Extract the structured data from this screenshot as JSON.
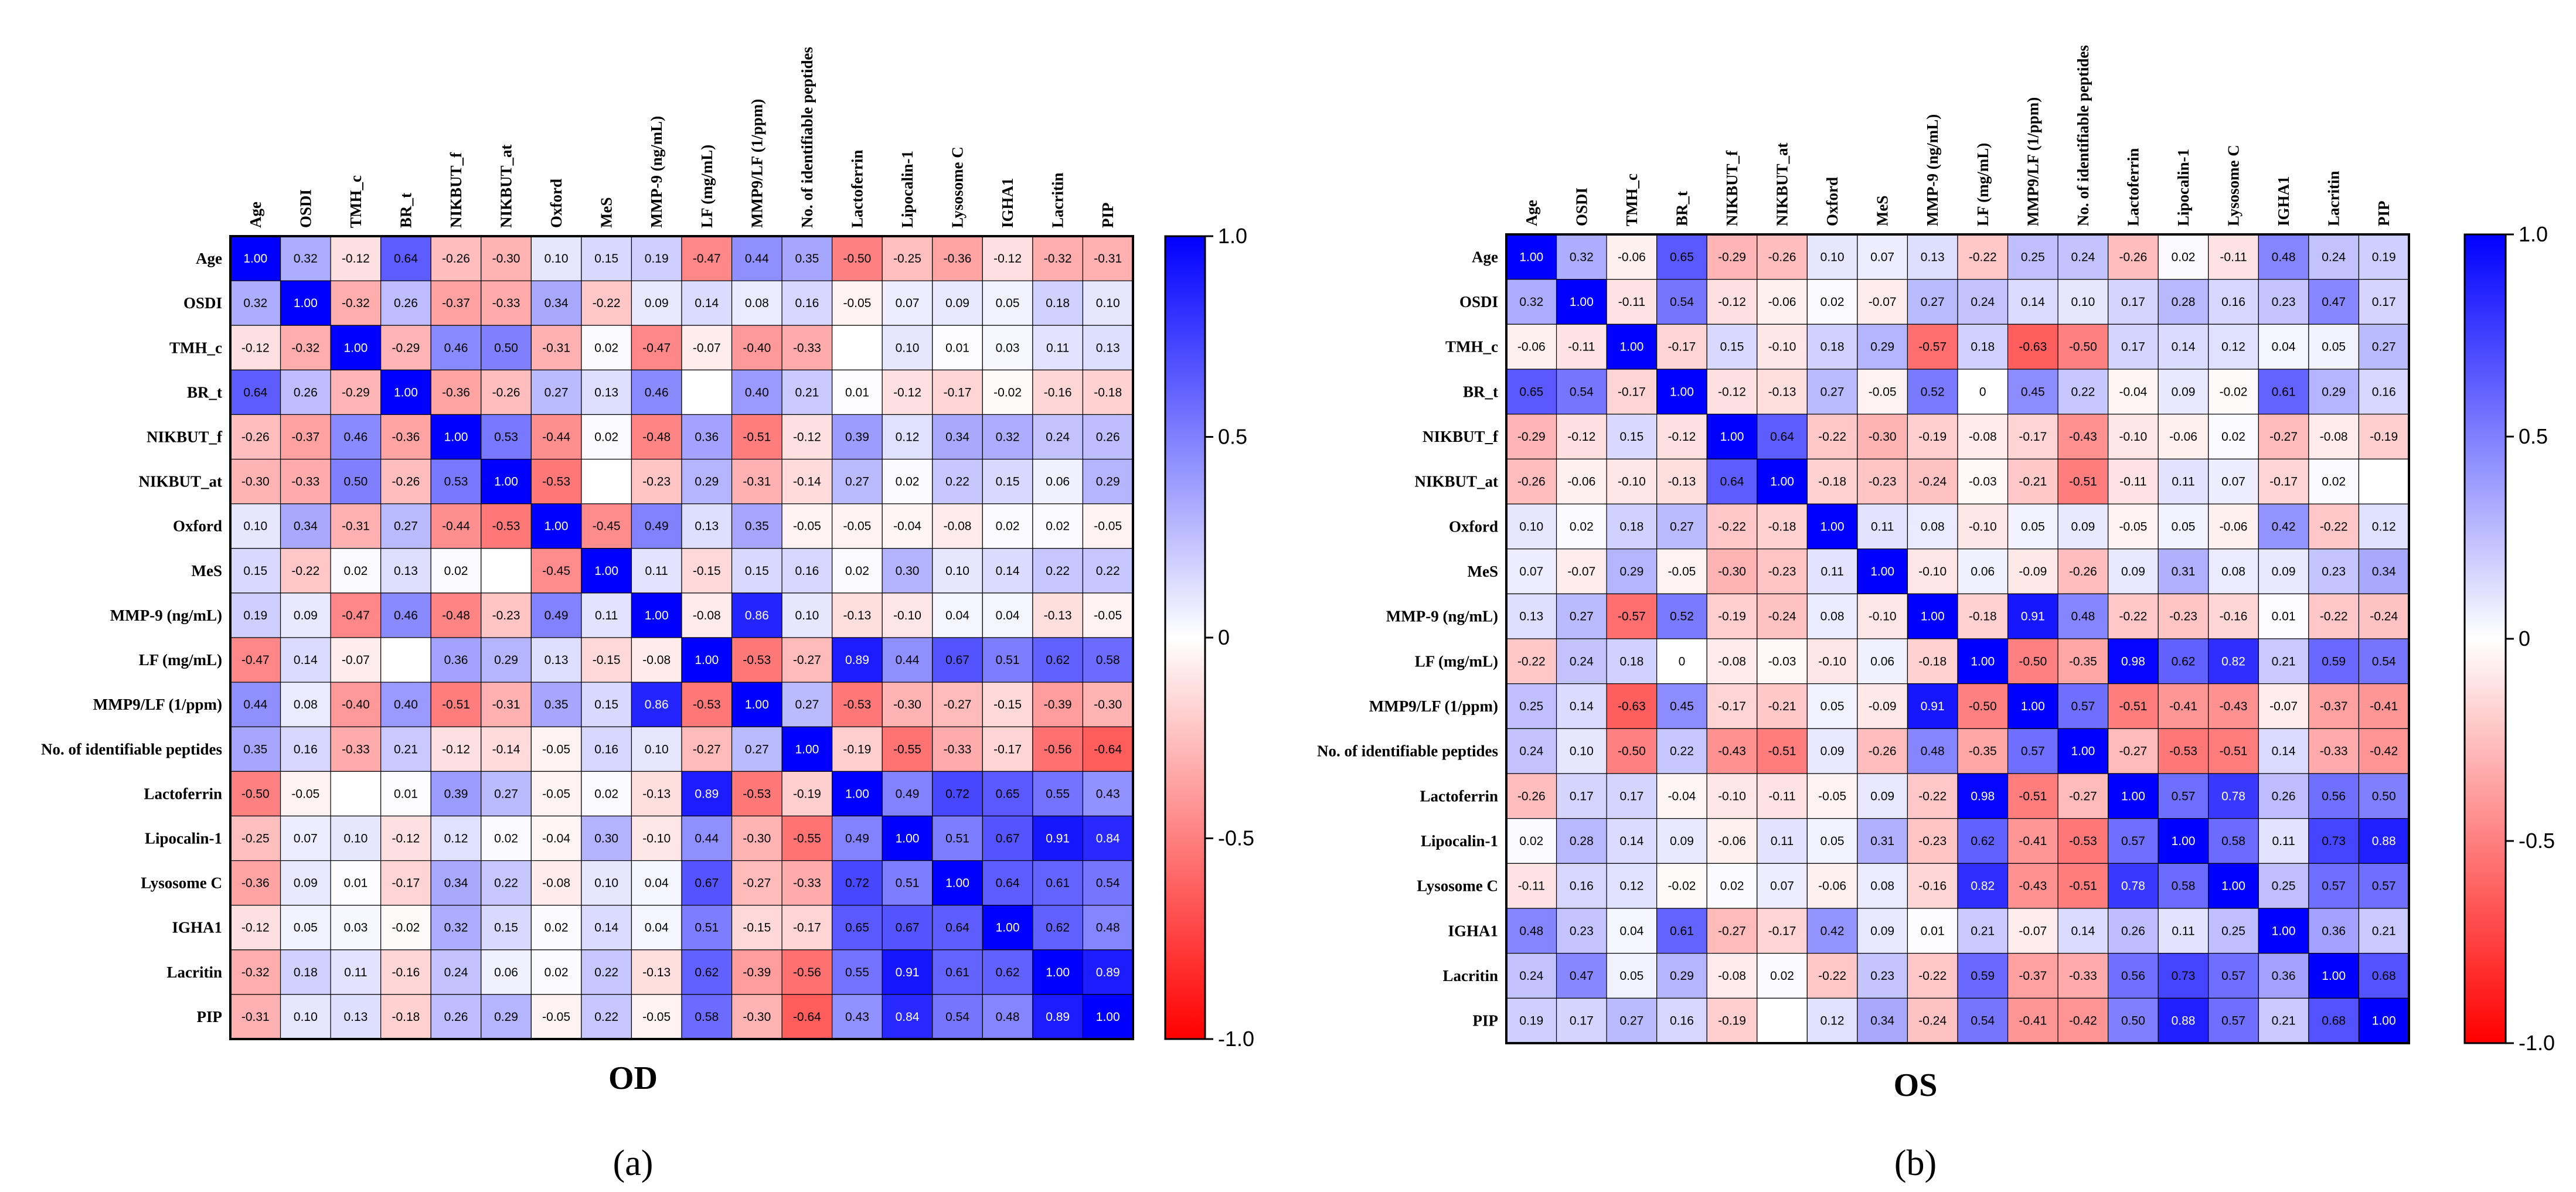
{
  "chart_data": [
    {
      "type": "heatmap",
      "panel_label": "(a)",
      "title": "OD",
      "variables": [
        "Age",
        "OSDI",
        "TMH_c",
        "BR_t",
        "NIKBUT_f",
        "NIKBUT_at",
        "Oxford",
        "MeS",
        "MMP-9 (ng/mL)",
        "LF (mg/mL)",
        "MMP9/LF (1/ppm)",
        "No. of identifiable peptides",
        "Lactoferrin",
        "Lipocalin-1",
        "Lysosome C",
        "IGHA1",
        "Lacritin",
        "PIP"
      ],
      "values": [
        [
          1.0,
          0.32,
          -0.12,
          0.64,
          -0.26,
          -0.3,
          0.1,
          0.15,
          0.19,
          -0.47,
          0.44,
          0.35,
          -0.5,
          -0.25,
          -0.36,
          -0.12,
          -0.32,
          -0.31
        ],
        [
          0.32,
          1.0,
          -0.32,
          0.26,
          -0.37,
          -0.33,
          0.34,
          -0.22,
          0.09,
          0.14,
          0.08,
          0.16,
          -0.05,
          0.07,
          0.09,
          0.05,
          0.18,
          0.1
        ],
        [
          -0.12,
          -0.32,
          1.0,
          -0.29,
          0.46,
          0.5,
          -0.31,
          0.02,
          -0.47,
          -0.07,
          -0.4,
          -0.33,
          null,
          0.1,
          0.01,
          0.03,
          0.11,
          0.13
        ],
        [
          0.64,
          0.26,
          -0.29,
          1.0,
          -0.36,
          -0.26,
          0.27,
          0.13,
          0.46,
          null,
          0.4,
          0.21,
          0.01,
          -0.12,
          -0.17,
          -0.02,
          -0.16,
          -0.18
        ],
        [
          -0.26,
          -0.37,
          0.46,
          -0.36,
          1.0,
          0.53,
          -0.44,
          0.02,
          -0.48,
          0.36,
          -0.51,
          -0.12,
          0.39,
          0.12,
          0.34,
          0.32,
          0.24,
          0.26
        ],
        [
          -0.3,
          -0.33,
          0.5,
          -0.26,
          0.53,
          1.0,
          -0.53,
          null,
          -0.23,
          0.29,
          -0.31,
          -0.14,
          0.27,
          0.02,
          0.22,
          0.15,
          0.06,
          0.29
        ],
        [
          0.1,
          0.34,
          -0.31,
          0.27,
          -0.44,
          -0.53,
          1.0,
          -0.45,
          0.49,
          0.13,
          0.35,
          -0.05,
          -0.05,
          -0.04,
          -0.08,
          0.02,
          0.02,
          -0.05
        ],
        [
          0.15,
          -0.22,
          0.02,
          0.13,
          0.02,
          null,
          -0.45,
          1.0,
          0.11,
          -0.15,
          0.15,
          0.16,
          0.02,
          0.3,
          0.1,
          0.14,
          0.22,
          0.22
        ],
        [
          0.19,
          0.09,
          -0.47,
          0.46,
          -0.48,
          -0.23,
          0.49,
          0.11,
          1.0,
          -0.08,
          0.86,
          0.1,
          -0.13,
          -0.1,
          0.04,
          0.04,
          -0.13,
          -0.05
        ],
        [
          -0.47,
          0.14,
          -0.07,
          null,
          0.36,
          0.29,
          0.13,
          -0.15,
          -0.08,
          1.0,
          -0.53,
          -0.27,
          0.89,
          0.44,
          0.67,
          0.51,
          0.62,
          0.58
        ],
        [
          0.44,
          0.08,
          -0.4,
          0.4,
          -0.51,
          -0.31,
          0.35,
          0.15,
          0.86,
          -0.53,
          1.0,
          0.27,
          -0.53,
          -0.3,
          -0.27,
          -0.15,
          -0.39,
          -0.3
        ],
        [
          0.35,
          0.16,
          -0.33,
          0.21,
          -0.12,
          -0.14,
          -0.05,
          0.16,
          0.1,
          -0.27,
          0.27,
          1.0,
          -0.19,
          -0.55,
          -0.33,
          -0.17,
          -0.56,
          -0.64
        ],
        [
          -0.5,
          -0.05,
          null,
          0.01,
          0.39,
          0.27,
          -0.05,
          0.02,
          -0.13,
          0.89,
          -0.53,
          -0.19,
          1.0,
          0.49,
          0.72,
          0.65,
          0.55,
          0.43
        ],
        [
          -0.25,
          0.07,
          0.1,
          -0.12,
          0.12,
          0.02,
          -0.04,
          0.3,
          -0.1,
          0.44,
          -0.3,
          -0.55,
          0.49,
          1.0,
          0.51,
          0.67,
          0.91,
          0.84
        ],
        [
          -0.36,
          0.09,
          0.01,
          -0.17,
          0.34,
          0.22,
          -0.08,
          0.1,
          0.04,
          0.67,
          -0.27,
          -0.33,
          0.72,
          0.51,
          1.0,
          0.64,
          0.61,
          0.54
        ],
        [
          -0.12,
          0.05,
          0.03,
          -0.02,
          0.32,
          0.15,
          0.02,
          0.14,
          0.04,
          0.51,
          -0.15,
          -0.17,
          0.65,
          0.67,
          0.64,
          1.0,
          0.62,
          0.48
        ],
        [
          -0.32,
          0.18,
          0.11,
          -0.16,
          0.24,
          0.06,
          0.02,
          0.22,
          -0.13,
          0.62,
          -0.39,
          -0.56,
          0.55,
          0.91,
          0.61,
          0.62,
          1.0,
          0.89
        ],
        [
          -0.31,
          0.1,
          0.13,
          -0.18,
          0.26,
          0.29,
          -0.05,
          0.22,
          -0.05,
          0.58,
          -0.3,
          -0.64,
          0.43,
          0.84,
          0.54,
          0.48,
          0.89,
          1.0
        ]
      ],
      "value_range": [
        -1.0,
        1.0
      ],
      "colorbar_ticks": [
        "1.0",
        "0.5",
        "0",
        "-0.5",
        "-1.0"
      ]
    },
    {
      "type": "heatmap",
      "panel_label": "(b)",
      "title": "OS",
      "variables": [
        "Age",
        "OSDI",
        "TMH_c",
        "BR_t",
        "NIKBUT_f",
        "NIKBUT_at",
        "Oxford",
        "MeS",
        "MMP-9 (ng/mL)",
        "LF (mg/mL)",
        "MMP9/LF (1/ppm)",
        "No. of identifiable peptides",
        "Lactoferrin",
        "Lipocalin-1",
        "Lysosome C",
        "IGHA1",
        "Lacritin",
        "PIP"
      ],
      "values": [
        [
          1.0,
          0.32,
          -0.06,
          0.65,
          -0.29,
          -0.26,
          0.1,
          0.07,
          0.13,
          -0.22,
          0.25,
          0.24,
          -0.26,
          0.02,
          -0.11,
          0.48,
          0.24,
          0.19
        ],
        [
          0.32,
          1.0,
          -0.11,
          0.54,
          -0.12,
          -0.06,
          0.02,
          -0.07,
          0.27,
          0.24,
          0.14,
          0.1,
          0.17,
          0.28,
          0.16,
          0.23,
          0.47,
          0.17
        ],
        [
          -0.06,
          -0.11,
          1.0,
          -0.17,
          0.15,
          -0.1,
          0.18,
          0.29,
          -0.57,
          0.18,
          -0.63,
          -0.5,
          0.17,
          0.14,
          0.12,
          0.04,
          0.05,
          0.27
        ],
        [
          0.65,
          0.54,
          -0.17,
          1.0,
          -0.12,
          -0.13,
          0.27,
          -0.05,
          0.52,
          0,
          0.45,
          0.22,
          -0.04,
          0.09,
          -0.02,
          0.61,
          0.29,
          0.16
        ],
        [
          -0.29,
          -0.12,
          0.15,
          -0.12,
          1.0,
          0.64,
          -0.22,
          -0.3,
          -0.19,
          -0.08,
          -0.17,
          -0.43,
          -0.1,
          -0.06,
          0.02,
          -0.27,
          -0.08,
          -0.19
        ],
        [
          -0.26,
          -0.06,
          -0.1,
          -0.13,
          0.64,
          1.0,
          -0.18,
          -0.23,
          -0.24,
          -0.03,
          -0.21,
          -0.51,
          -0.11,
          0.11,
          0.07,
          -0.17,
          0.02,
          null
        ],
        [
          0.1,
          0.02,
          0.18,
          0.27,
          -0.22,
          -0.18,
          1.0,
          0.11,
          0.08,
          -0.1,
          0.05,
          0.09,
          -0.05,
          0.05,
          -0.06,
          0.42,
          -0.22,
          0.12
        ],
        [
          0.07,
          -0.07,
          0.29,
          -0.05,
          -0.3,
          -0.23,
          0.11,
          1.0,
          -0.1,
          0.06,
          -0.09,
          -0.26,
          0.09,
          0.31,
          0.08,
          0.09,
          0.23,
          0.34
        ],
        [
          0.13,
          0.27,
          -0.57,
          0.52,
          -0.19,
          -0.24,
          0.08,
          -0.1,
          1.0,
          -0.18,
          0.91,
          0.48,
          -0.22,
          -0.23,
          -0.16,
          0.01,
          -0.22,
          -0.24
        ],
        [
          -0.22,
          0.24,
          0.18,
          0,
          -0.08,
          -0.03,
          -0.1,
          0.06,
          -0.18,
          1.0,
          -0.5,
          -0.35,
          0.98,
          0.62,
          0.82,
          0.21,
          0.59,
          0.54
        ],
        [
          0.25,
          0.14,
          -0.63,
          0.45,
          -0.17,
          -0.21,
          0.05,
          -0.09,
          0.91,
          -0.5,
          1.0,
          0.57,
          -0.51,
          -0.41,
          -0.43,
          -0.07,
          -0.37,
          -0.41
        ],
        [
          0.24,
          0.1,
          -0.5,
          0.22,
          -0.43,
          -0.51,
          0.09,
          -0.26,
          0.48,
          -0.35,
          0.57,
          1.0,
          -0.27,
          -0.53,
          -0.51,
          0.14,
          -0.33,
          -0.42
        ],
        [
          -0.26,
          0.17,
          0.17,
          -0.04,
          -0.1,
          -0.11,
          -0.05,
          0.09,
          -0.22,
          0.98,
          -0.51,
          -0.27,
          1.0,
          0.57,
          0.78,
          0.26,
          0.56,
          0.5
        ],
        [
          0.02,
          0.28,
          0.14,
          0.09,
          -0.06,
          0.11,
          0.05,
          0.31,
          -0.23,
          0.62,
          -0.41,
          -0.53,
          0.57,
          1.0,
          0.58,
          0.11,
          0.73,
          0.88
        ],
        [
          -0.11,
          0.16,
          0.12,
          -0.02,
          0.02,
          0.07,
          -0.06,
          0.08,
          -0.16,
          0.82,
          -0.43,
          -0.51,
          0.78,
          0.58,
          1.0,
          0.25,
          0.57,
          0.57
        ],
        [
          0.48,
          0.23,
          0.04,
          0.61,
          -0.27,
          -0.17,
          0.42,
          0.09,
          0.01,
          0.21,
          -0.07,
          0.14,
          0.26,
          0.11,
          0.25,
          1.0,
          0.36,
          0.21
        ],
        [
          0.24,
          0.47,
          0.05,
          0.29,
          -0.08,
          0.02,
          -0.22,
          0.23,
          -0.22,
          0.59,
          -0.37,
          -0.33,
          0.56,
          0.73,
          0.57,
          0.36,
          1.0,
          0.68
        ],
        [
          0.19,
          0.17,
          0.27,
          0.16,
          -0.19,
          null,
          0.12,
          0.34,
          -0.24,
          0.54,
          -0.41,
          -0.42,
          0.5,
          0.88,
          0.57,
          0.21,
          0.68,
          1.0
        ]
      ],
      "value_range": [
        -1.0,
        1.0
      ],
      "colorbar_ticks": [
        "1.0",
        "0.5",
        "0",
        "-0.5",
        "-1.0"
      ]
    }
  ],
  "colors": {
    "positive": "#0000ff",
    "neutral": "#ffffff",
    "negative": "#ff0000",
    "border": "#000000"
  }
}
